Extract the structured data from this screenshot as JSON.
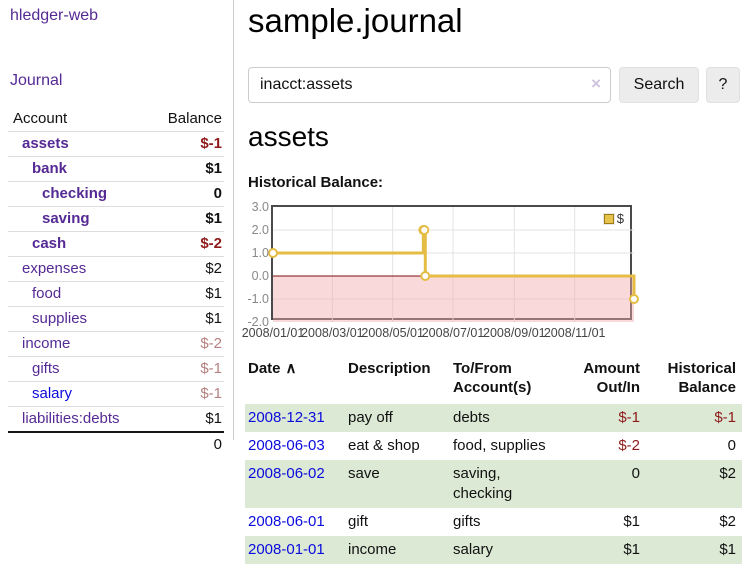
{
  "colors": {
    "link_purple": "#552a94",
    "link_blue": "#0b0bdc",
    "negative_strong": "#8e1a1a",
    "negative_faded": "#b5807f",
    "row_green": "#dbe9d5",
    "chart_line_gold": "#e5bd45",
    "chart_swatch_gold": "#e7c34e",
    "chart_swatch_border": "#9c7c16",
    "chart_negative_zone": "#f2aaaa",
    "chart_zero_line": "#7f0d0d",
    "chart_grid": "#e3e3e3",
    "chart_border": "#4a4a4a",
    "divider": "#cccccc",
    "button_bg": "#ececec",
    "clear_icon": "#cfc3e0",
    "y_label": "#888888",
    "x_label": "#444444"
  },
  "sidebar": {
    "brand": "hledger-web",
    "journal_link": "Journal",
    "accounts": {
      "headers": {
        "account": "Account",
        "balance": "Balance"
      },
      "rows": [
        {
          "name": "assets",
          "balance": "$-1",
          "level": 1,
          "bold": true,
          "name_color": "purple",
          "balance_color": "negative_strong"
        },
        {
          "name": "bank",
          "balance": "$1",
          "level": 2,
          "bold": true,
          "name_color": "purple",
          "balance_color": "plain"
        },
        {
          "name": "checking",
          "balance": "0",
          "level": 3,
          "bold": true,
          "name_color": "purple",
          "balance_color": "plain"
        },
        {
          "name": "saving",
          "balance": "$1",
          "level": 3,
          "bold": true,
          "name_color": "purple",
          "balance_color": "plain"
        },
        {
          "name": "cash",
          "balance": "$-2",
          "level": 2,
          "bold": true,
          "name_color": "purple",
          "balance_color": "negative_strong"
        },
        {
          "name": "expenses",
          "balance": "$2",
          "level": 1,
          "bold": false,
          "name_color": "purple",
          "balance_color": "plain"
        },
        {
          "name": "food",
          "balance": "$1",
          "level": 2,
          "bold": false,
          "name_color": "purple",
          "balance_color": "plain"
        },
        {
          "name": "supplies",
          "balance": "$1",
          "level": 2,
          "bold": false,
          "name_color": "purple",
          "balance_color": "plain"
        },
        {
          "name": "income",
          "balance": "$-2",
          "level": 1,
          "bold": false,
          "name_color": "purple",
          "balance_color": "negative_faded"
        },
        {
          "name": "gifts",
          "balance": "$-1",
          "level": 2,
          "bold": false,
          "name_color": "purple",
          "balance_color": "negative_faded"
        },
        {
          "name": "salary",
          "balance": "$-1",
          "level": 2,
          "bold": false,
          "name_color": "blue",
          "balance_color": "negative_faded"
        },
        {
          "name": "liabilities:debts",
          "balance": "$1",
          "level": 1,
          "bold": false,
          "name_color": "purple",
          "balance_color": "plain"
        }
      ],
      "total": "0"
    }
  },
  "main": {
    "title": "sample.journal",
    "search": {
      "value": "inacct:assets",
      "clear_icon": "×",
      "search_button": "Search",
      "help_button": "?"
    },
    "account_heading": "assets",
    "chart_label": "Historical Balance:",
    "register_table": {
      "sort_indicator": "∧",
      "headers": {
        "date": "Date",
        "description": "Description",
        "accounts": "To/From Account(s)",
        "amount": "Amount Out/In",
        "balance": "Historical Balance"
      },
      "rows": [
        {
          "date": "2008-12-31",
          "description": "pay off",
          "accounts": "debts",
          "amount": "$-1",
          "balance": "$-1"
        },
        {
          "date": "2008-06-03",
          "description": "eat & shop",
          "accounts": "food, supplies",
          "amount": "$-2",
          "balance": "0"
        },
        {
          "date": "2008-06-02",
          "description": "save",
          "accounts": "saving, checking",
          "amount": "0",
          "balance": "$2"
        },
        {
          "date": "2008-06-01",
          "description": "gift",
          "accounts": "gifts",
          "amount": "$1",
          "balance": "$2"
        },
        {
          "date": "2008-01-01",
          "description": "income",
          "accounts": "salary",
          "amount": "$1",
          "balance": "$1"
        }
      ]
    }
  },
  "chart_data": {
    "type": "line",
    "title": "Historical Balance",
    "step": true,
    "series": [
      {
        "name": "$",
        "points": [
          [
            "2008-01-01",
            1
          ],
          [
            "2008-06-01",
            2
          ],
          [
            "2008-06-02",
            2
          ],
          [
            "2008-06-03",
            0
          ],
          [
            "2008-12-31",
            -1
          ]
        ]
      }
    ],
    "xlim": [
      "2008-01-01",
      "2008-12-31"
    ],
    "ylim": [
      -2,
      3
    ],
    "x_ticks": [
      "2008/01/01",
      "2008/03/01",
      "2008/05/01",
      "2008/07/01",
      "2008/09/01",
      "2008/11/01"
    ],
    "y_ticks": [
      3.0,
      2.0,
      1.0,
      0.0,
      -1.0,
      -2.0
    ],
    "grid": true,
    "legend": {
      "label": "$",
      "position": "top-right"
    },
    "negative_zone": true
  }
}
